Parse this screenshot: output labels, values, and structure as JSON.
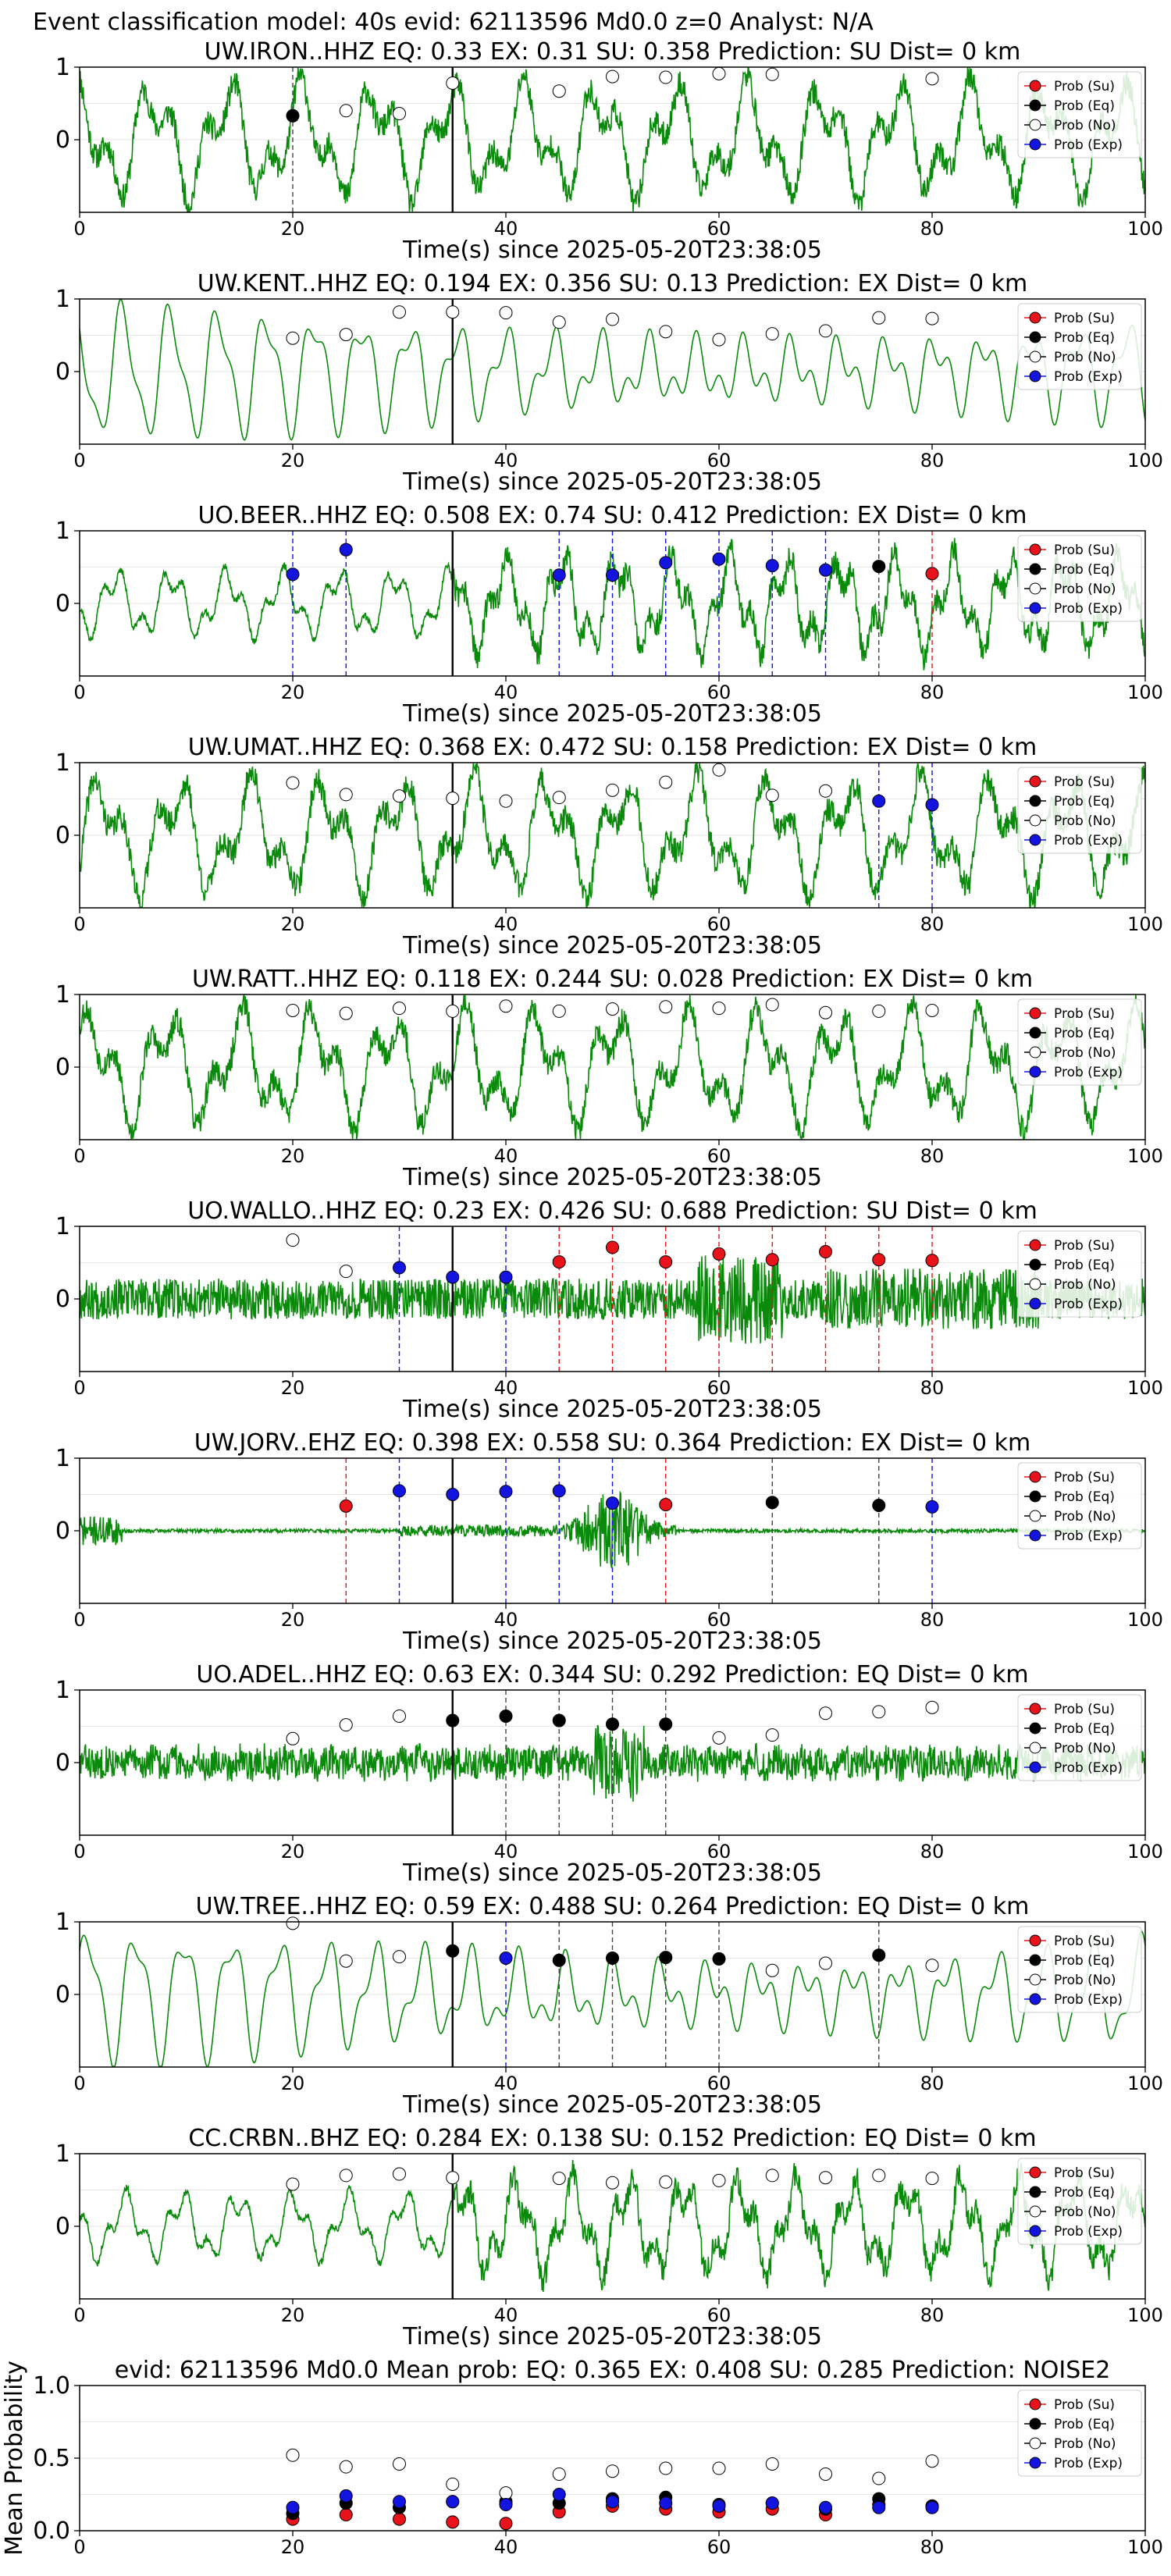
{
  "suptitle": "Event classification model: 40s evid: 62113596 Md0.0 z=0 Analyst: N/A",
  "colors": {
    "su": "#e8131a",
    "eq": "#000000",
    "no": "#ffffff",
    "exp": "#1414e0",
    "trace": "#0a8a0a"
  },
  "legend": [
    "Prob (Su)",
    "Prob (Eq)",
    "Prob (No)",
    "Prob (Exp)"
  ],
  "xlabel": "Time(s) since 2025-05-20T23:38:05",
  "x_ticks": [
    0,
    20,
    40,
    60,
    80,
    100
  ],
  "pick_time": 35,
  "chart_data": [
    {
      "type": "line",
      "title": "UW.IRON..HHZ   EQ: 0.33  EX: 0.31  SU: 0.358   Prediction: SU    Dist= 0 km",
      "xlim": [
        0,
        100
      ],
      "ylim": [
        -1,
        1
      ],
      "yticks": [
        0,
        1
      ],
      "seed": 11,
      "style": "hf",
      "markers": [
        {
          "x": 20,
          "y": 0.33,
          "cls": "eq"
        },
        {
          "x": 25,
          "y": 0.4,
          "cls": "no"
        },
        {
          "x": 30,
          "y": 0.36,
          "cls": "no"
        },
        {
          "x": 35,
          "y": 0.78,
          "cls": "no"
        },
        {
          "x": 45,
          "y": 0.67,
          "cls": "no"
        },
        {
          "x": 50,
          "y": 0.87,
          "cls": "no"
        },
        {
          "x": 55,
          "y": 0.86,
          "cls": "no"
        },
        {
          "x": 60,
          "y": 0.91,
          "cls": "no"
        },
        {
          "x": 65,
          "y": 0.9,
          "cls": "no"
        },
        {
          "x": 80,
          "y": 0.84,
          "cls": "no"
        }
      ]
    },
    {
      "type": "line",
      "title": "UW.KENT..HHZ   EQ: 0.194  EX: 0.356  SU: 0.13   Prediction: EX    Dist= 0 km",
      "xlim": [
        0,
        100
      ],
      "ylim": [
        -1,
        1
      ],
      "yticks": [
        0,
        1
      ],
      "seed": 23,
      "style": "smooth",
      "markers": [
        {
          "x": 20,
          "y": 0.46,
          "cls": "no"
        },
        {
          "x": 25,
          "y": 0.51,
          "cls": "no"
        },
        {
          "x": 30,
          "y": 0.82,
          "cls": "no"
        },
        {
          "x": 35,
          "y": 0.82,
          "cls": "no"
        },
        {
          "x": 40,
          "y": 0.81,
          "cls": "no"
        },
        {
          "x": 45,
          "y": 0.68,
          "cls": "no"
        },
        {
          "x": 50,
          "y": 0.72,
          "cls": "no"
        },
        {
          "x": 55,
          "y": 0.55,
          "cls": "no"
        },
        {
          "x": 60,
          "y": 0.44,
          "cls": "no"
        },
        {
          "x": 65,
          "y": 0.52,
          "cls": "no"
        },
        {
          "x": 70,
          "y": 0.56,
          "cls": "no"
        },
        {
          "x": 75,
          "y": 0.74,
          "cls": "no"
        },
        {
          "x": 80,
          "y": 0.73,
          "cls": "no"
        }
      ]
    },
    {
      "type": "line",
      "title": "UO.BEER..HHZ   EQ: 0.508  EX: 0.74  SU: 0.412   Prediction: EX    Dist= 0 km",
      "xlim": [
        0,
        100
      ],
      "ylim": [
        -1,
        1
      ],
      "yticks": [
        0,
        1
      ],
      "seed": 37,
      "style": "mixed",
      "markers": [
        {
          "x": 20,
          "y": 0.4,
          "cls": "exp"
        },
        {
          "x": 25,
          "y": 0.74,
          "cls": "exp"
        },
        {
          "x": 45,
          "y": 0.39,
          "cls": "exp"
        },
        {
          "x": 50,
          "y": 0.39,
          "cls": "exp"
        },
        {
          "x": 55,
          "y": 0.56,
          "cls": "exp"
        },
        {
          "x": 60,
          "y": 0.61,
          "cls": "exp"
        },
        {
          "x": 65,
          "y": 0.52,
          "cls": "exp"
        },
        {
          "x": 70,
          "y": 0.46,
          "cls": "exp"
        },
        {
          "x": 75,
          "y": 0.51,
          "cls": "eq"
        },
        {
          "x": 80,
          "y": 0.41,
          "cls": "su"
        }
      ]
    },
    {
      "type": "line",
      "title": "UW.UMAT..HHZ   EQ: 0.368  EX: 0.472  SU: 0.158   Prediction: EX    Dist= 0 km",
      "xlim": [
        0,
        100
      ],
      "ylim": [
        -1,
        1
      ],
      "yticks": [
        0,
        1
      ],
      "seed": 41,
      "style": "hf",
      "markers": [
        {
          "x": 20,
          "y": 0.72,
          "cls": "no"
        },
        {
          "x": 25,
          "y": 0.56,
          "cls": "no"
        },
        {
          "x": 30,
          "y": 0.54,
          "cls": "no"
        },
        {
          "x": 35,
          "y": 0.51,
          "cls": "no"
        },
        {
          "x": 40,
          "y": 0.47,
          "cls": "no"
        },
        {
          "x": 45,
          "y": 0.52,
          "cls": "no"
        },
        {
          "x": 50,
          "y": 0.62,
          "cls": "no"
        },
        {
          "x": 55,
          "y": 0.73,
          "cls": "no"
        },
        {
          "x": 60,
          "y": 0.9,
          "cls": "no"
        },
        {
          "x": 65,
          "y": 0.55,
          "cls": "no"
        },
        {
          "x": 70,
          "y": 0.61,
          "cls": "no"
        },
        {
          "x": 75,
          "y": 0.47,
          "cls": "exp"
        },
        {
          "x": 80,
          "y": 0.42,
          "cls": "exp"
        }
      ]
    },
    {
      "type": "line",
      "title": "UW.RATT..HHZ   EQ: 0.118  EX: 0.244  SU: 0.028   Prediction: EX    Dist= 0 km",
      "xlim": [
        0,
        100
      ],
      "ylim": [
        -1,
        1
      ],
      "yticks": [
        0,
        1
      ],
      "seed": 53,
      "style": "hf",
      "markers": [
        {
          "x": 20,
          "y": 0.78,
          "cls": "no"
        },
        {
          "x": 25,
          "y": 0.74,
          "cls": "no"
        },
        {
          "x": 30,
          "y": 0.81,
          "cls": "no"
        },
        {
          "x": 35,
          "y": 0.77,
          "cls": "no"
        },
        {
          "x": 40,
          "y": 0.84,
          "cls": "no"
        },
        {
          "x": 45,
          "y": 0.77,
          "cls": "no"
        },
        {
          "x": 50,
          "y": 0.8,
          "cls": "no"
        },
        {
          "x": 55,
          "y": 0.83,
          "cls": "no"
        },
        {
          "x": 60,
          "y": 0.81,
          "cls": "no"
        },
        {
          "x": 65,
          "y": 0.86,
          "cls": "no"
        },
        {
          "x": 70,
          "y": 0.75,
          "cls": "no"
        },
        {
          "x": 75,
          "y": 0.77,
          "cls": "no"
        },
        {
          "x": 80,
          "y": 0.78,
          "cls": "no"
        }
      ]
    },
    {
      "type": "line",
      "title": "UO.WALLO..HHZ   EQ: 0.23  EX: 0.426  SU: 0.688   Prediction: SU    Dist= 0 km",
      "xlim": [
        0,
        100
      ],
      "ylim": [
        -1,
        1
      ],
      "yticks": [
        0,
        1
      ],
      "seed": 67,
      "style": "noise",
      "markers": [
        {
          "x": 20,
          "y": 0.81,
          "cls": "no"
        },
        {
          "x": 25,
          "y": 0.38,
          "cls": "no"
        },
        {
          "x": 30,
          "y": 0.43,
          "cls": "exp"
        },
        {
          "x": 35,
          "y": 0.3,
          "cls": "exp"
        },
        {
          "x": 40,
          "y": 0.3,
          "cls": "exp"
        },
        {
          "x": 45,
          "y": 0.51,
          "cls": "su"
        },
        {
          "x": 50,
          "y": 0.71,
          "cls": "su"
        },
        {
          "x": 55,
          "y": 0.51,
          "cls": "su"
        },
        {
          "x": 60,
          "y": 0.62,
          "cls": "su"
        },
        {
          "x": 65,
          "y": 0.54,
          "cls": "su"
        },
        {
          "x": 70,
          "y": 0.65,
          "cls": "su"
        },
        {
          "x": 75,
          "y": 0.54,
          "cls": "su"
        },
        {
          "x": 80,
          "y": 0.53,
          "cls": "su"
        }
      ]
    },
    {
      "type": "line",
      "title": "UW.JORV..EHZ   EQ: 0.398  EX: 0.558  SU: 0.364   Prediction: EX    Dist= 0 km",
      "xlim": [
        0,
        100
      ],
      "ylim": [
        -1,
        1
      ],
      "yticks": [
        0,
        1
      ],
      "seed": 71,
      "style": "quiet",
      "markers": [
        {
          "x": 25,
          "y": 0.34,
          "cls": "su"
        },
        {
          "x": 30,
          "y": 0.55,
          "cls": "exp"
        },
        {
          "x": 35,
          "y": 0.5,
          "cls": "exp"
        },
        {
          "x": 40,
          "y": 0.54,
          "cls": "exp"
        },
        {
          "x": 45,
          "y": 0.55,
          "cls": "exp"
        },
        {
          "x": 50,
          "y": 0.38,
          "cls": "exp"
        },
        {
          "x": 55,
          "y": 0.36,
          "cls": "su"
        },
        {
          "x": 65,
          "y": 0.39,
          "cls": "eq"
        },
        {
          "x": 75,
          "y": 0.35,
          "cls": "eq"
        },
        {
          "x": 80,
          "y": 0.33,
          "cls": "exp"
        }
      ]
    },
    {
      "type": "line",
      "title": "UO.ADEL..HHZ   EQ: 0.63  EX: 0.344  SU: 0.292   Prediction: EQ    Dist= 0 km",
      "xlim": [
        0,
        100
      ],
      "ylim": [
        -1,
        1
      ],
      "yticks": [
        0,
        1
      ],
      "seed": 83,
      "style": "noise2",
      "markers": [
        {
          "x": 20,
          "y": 0.33,
          "cls": "no"
        },
        {
          "x": 25,
          "y": 0.52,
          "cls": "no"
        },
        {
          "x": 30,
          "y": 0.64,
          "cls": "no"
        },
        {
          "x": 35,
          "y": 0.58,
          "cls": "eq"
        },
        {
          "x": 40,
          "y": 0.64,
          "cls": "eq"
        },
        {
          "x": 45,
          "y": 0.58,
          "cls": "eq"
        },
        {
          "x": 50,
          "y": 0.53,
          "cls": "eq"
        },
        {
          "x": 55,
          "y": 0.53,
          "cls": "eq"
        },
        {
          "x": 60,
          "y": 0.34,
          "cls": "no"
        },
        {
          "x": 65,
          "y": 0.38,
          "cls": "no"
        },
        {
          "x": 70,
          "y": 0.68,
          "cls": "no"
        },
        {
          "x": 75,
          "y": 0.7,
          "cls": "no"
        },
        {
          "x": 80,
          "y": 0.76,
          "cls": "no"
        }
      ]
    },
    {
      "type": "line",
      "title": "UW.TREE..HHZ   EQ: 0.59  EX: 0.488  SU: 0.264   Prediction: EQ    Dist= 0 km",
      "xlim": [
        0,
        100
      ],
      "ylim": [
        -1,
        1
      ],
      "yticks": [
        0,
        1
      ],
      "seed": 97,
      "style": "smooth",
      "markers": [
        {
          "x": 20,
          "y": 0.98,
          "cls": "no"
        },
        {
          "x": 25,
          "y": 0.46,
          "cls": "no"
        },
        {
          "x": 30,
          "y": 0.52,
          "cls": "no"
        },
        {
          "x": 35,
          "y": 0.6,
          "cls": "eq"
        },
        {
          "x": 40,
          "y": 0.5,
          "cls": "exp"
        },
        {
          "x": 45,
          "y": 0.47,
          "cls": "eq"
        },
        {
          "x": 50,
          "y": 0.5,
          "cls": "eq"
        },
        {
          "x": 55,
          "y": 0.51,
          "cls": "eq"
        },
        {
          "x": 60,
          "y": 0.49,
          "cls": "eq"
        },
        {
          "x": 65,
          "y": 0.33,
          "cls": "no"
        },
        {
          "x": 70,
          "y": 0.43,
          "cls": "no"
        },
        {
          "x": 75,
          "y": 0.54,
          "cls": "eq"
        },
        {
          "x": 80,
          "y": 0.4,
          "cls": "no"
        }
      ]
    },
    {
      "type": "line",
      "title": "CC.CRBN..BHZ   EQ: 0.284  EX: 0.138  SU: 0.152   Prediction: EQ    Dist= 0 km",
      "xlim": [
        0,
        100
      ],
      "ylim": [
        -1,
        1
      ],
      "yticks": [
        0,
        1
      ],
      "seed": 101,
      "style": "mixed2",
      "markers": [
        {
          "x": 20,
          "y": 0.58,
          "cls": "no"
        },
        {
          "x": 25,
          "y": 0.7,
          "cls": "no"
        },
        {
          "x": 30,
          "y": 0.72,
          "cls": "no"
        },
        {
          "x": 35,
          "y": 0.67,
          "cls": "no"
        },
        {
          "x": 45,
          "y": 0.66,
          "cls": "no"
        },
        {
          "x": 50,
          "y": 0.6,
          "cls": "no"
        },
        {
          "x": 55,
          "y": 0.61,
          "cls": "no"
        },
        {
          "x": 60,
          "y": 0.63,
          "cls": "no"
        },
        {
          "x": 65,
          "y": 0.7,
          "cls": "no"
        },
        {
          "x": 70,
          "y": 0.67,
          "cls": "no"
        },
        {
          "x": 75,
          "y": 0.7,
          "cls": "no"
        },
        {
          "x": 80,
          "y": 0.66,
          "cls": "no"
        }
      ]
    },
    {
      "type": "scatter",
      "title": "evid: 62113596  Md0.0   Mean prob:   EQ: 0.365  EX: 0.408  SU: 0.285   Prediction: NOISE2",
      "xlim": [
        0,
        100
      ],
      "ylim": [
        0,
        1
      ],
      "yticks": [
        0,
        0.5,
        1
      ],
      "ytick_labels": [
        "0.0",
        "0.5",
        "1.0"
      ],
      "ylabel": "Mean Probability",
      "x": [
        20,
        25,
        30,
        35,
        40,
        45,
        50,
        55,
        60,
        65,
        70,
        75,
        80
      ],
      "series": [
        {
          "cls": "su",
          "values": [
            0.08,
            0.11,
            0.08,
            0.06,
            0.05,
            0.13,
            0.17,
            0.15,
            0.13,
            0.15,
            0.11,
            0.18,
            0.17
          ]
        },
        {
          "cls": "eq",
          "values": [
            0.12,
            0.19,
            0.16,
            0.2,
            0.2,
            0.19,
            0.22,
            0.23,
            0.18,
            0.19,
            0.15,
            0.22,
            0.17
          ]
        },
        {
          "cls": "no",
          "values": [
            0.52,
            0.44,
            0.46,
            0.32,
            0.26,
            0.39,
            0.41,
            0.43,
            0.43,
            0.46,
            0.39,
            0.36,
            0.48
          ]
        },
        {
          "cls": "exp",
          "values": [
            0.16,
            0.24,
            0.2,
            0.2,
            0.18,
            0.25,
            0.2,
            0.19,
            0.17,
            0.19,
            0.16,
            0.16,
            0.16
          ]
        }
      ]
    }
  ]
}
